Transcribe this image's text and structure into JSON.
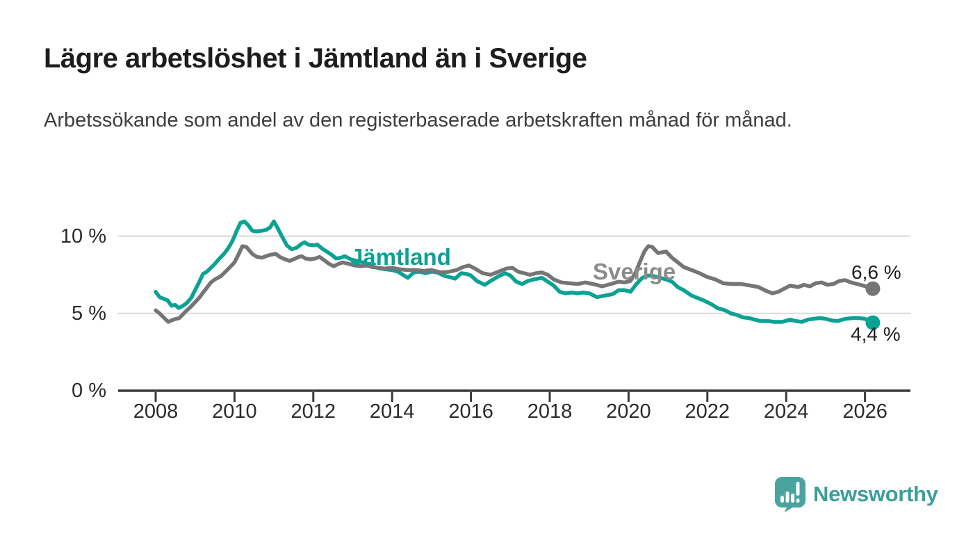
{
  "header": {
    "title": "Lägre arbetslöshet i Jämtland än i Sverige",
    "subtitle": "Arbetssökande som andel av den registerbaserade arbetskraften månad för månad."
  },
  "footer": {
    "brand": "Newsworthy"
  },
  "colors": {
    "jamtland_line": "#0ba294",
    "sverige_line": "#757575",
    "sverige_label": "#8b8b8b",
    "axis": "#3a3a3a",
    "gridline": "#d9d9d9",
    "text_dark": "#1e1e1e",
    "brand_teal": "#4ba3a0"
  },
  "chart_data": {
    "type": "line",
    "title": "Lägre arbetslöshet i Jämtland än i Sverige",
    "subtitle": "Arbetssökande som andel av den registerbaserade arbetskraften månad för månad.",
    "unit": "%",
    "grid": "horizontal-only",
    "legend_position": "inline-labels",
    "x_axis": {
      "min": 2007.85,
      "max": 2027.1,
      "ticks": [
        2008,
        2010,
        2012,
        2014,
        2016,
        2018,
        2020,
        2022,
        2024,
        2026
      ]
    },
    "y_axis": {
      "min": 0,
      "max": 12,
      "ticks": [
        {
          "label": "0 %",
          "value": 0
        },
        {
          "label": "5 %",
          "value": 5
        },
        {
          "label": "10 %",
          "value": 10
        }
      ]
    },
    "series": [
      {
        "name": "Jämtland",
        "color": "#0ba294",
        "end_label": "4,4 %",
        "end_value": 4.4,
        "points": [
          [
            2008.0,
            6.4
          ],
          [
            2008.1,
            6.05
          ],
          [
            2008.2,
            5.95
          ],
          [
            2008.3,
            5.85
          ],
          [
            2008.4,
            5.5
          ],
          [
            2008.5,
            5.55
          ],
          [
            2008.58,
            5.35
          ],
          [
            2008.7,
            5.5
          ],
          [
            2008.8,
            5.7
          ],
          [
            2008.9,
            6.0
          ],
          [
            2009.0,
            6.5
          ],
          [
            2009.1,
            7.0
          ],
          [
            2009.2,
            7.55
          ],
          [
            2009.3,
            7.7
          ],
          [
            2009.4,
            7.95
          ],
          [
            2009.5,
            8.2
          ],
          [
            2009.6,
            8.5
          ],
          [
            2009.75,
            8.9
          ],
          [
            2009.85,
            9.25
          ],
          [
            2009.95,
            9.7
          ],
          [
            2010.05,
            10.3
          ],
          [
            2010.15,
            10.85
          ],
          [
            2010.25,
            10.95
          ],
          [
            2010.35,
            10.7
          ],
          [
            2010.45,
            10.35
          ],
          [
            2010.55,
            10.3
          ],
          [
            2010.7,
            10.35
          ],
          [
            2010.8,
            10.4
          ],
          [
            2010.9,
            10.55
          ],
          [
            2011.0,
            10.95
          ],
          [
            2011.1,
            10.5
          ],
          [
            2011.2,
            10.0
          ],
          [
            2011.33,
            9.4
          ],
          [
            2011.45,
            9.15
          ],
          [
            2011.58,
            9.25
          ],
          [
            2011.7,
            9.5
          ],
          [
            2011.78,
            9.6
          ],
          [
            2011.87,
            9.45
          ],
          [
            2012.0,
            9.4
          ],
          [
            2012.1,
            9.45
          ],
          [
            2012.22,
            9.2
          ],
          [
            2012.34,
            9.0
          ],
          [
            2012.46,
            8.8
          ],
          [
            2012.58,
            8.55
          ],
          [
            2012.7,
            8.6
          ],
          [
            2012.8,
            8.7
          ],
          [
            2012.95,
            8.5
          ],
          [
            2013.1,
            8.4
          ],
          [
            2013.25,
            8.3
          ],
          [
            2013.4,
            8.2
          ],
          [
            2013.55,
            8.0
          ],
          [
            2013.7,
            7.9
          ],
          [
            2013.85,
            7.85
          ],
          [
            2014.0,
            7.8
          ],
          [
            2014.15,
            7.7
          ],
          [
            2014.3,
            7.45
          ],
          [
            2014.4,
            7.3
          ],
          [
            2014.55,
            7.65
          ],
          [
            2014.7,
            7.7
          ],
          [
            2014.85,
            7.6
          ],
          [
            2015.0,
            7.7
          ],
          [
            2015.15,
            7.65
          ],
          [
            2015.3,
            7.45
          ],
          [
            2015.45,
            7.35
          ],
          [
            2015.6,
            7.25
          ],
          [
            2015.75,
            7.6
          ],
          [
            2015.9,
            7.55
          ],
          [
            2016.0,
            7.45
          ],
          [
            2016.15,
            7.1
          ],
          [
            2016.35,
            6.85
          ],
          [
            2016.5,
            7.1
          ],
          [
            2016.7,
            7.4
          ],
          [
            2016.87,
            7.6
          ],
          [
            2017.0,
            7.45
          ],
          [
            2017.15,
            7.05
          ],
          [
            2017.3,
            6.9
          ],
          [
            2017.45,
            7.1
          ],
          [
            2017.6,
            7.2
          ],
          [
            2017.8,
            7.3
          ],
          [
            2017.95,
            7.05
          ],
          [
            2018.1,
            6.8
          ],
          [
            2018.25,
            6.4
          ],
          [
            2018.4,
            6.3
          ],
          [
            2018.55,
            6.35
          ],
          [
            2018.7,
            6.3
          ],
          [
            2018.85,
            6.35
          ],
          [
            2019.0,
            6.3
          ],
          [
            2019.2,
            6.05
          ],
          [
            2019.4,
            6.15
          ],
          [
            2019.6,
            6.25
          ],
          [
            2019.75,
            6.5
          ],
          [
            2019.9,
            6.5
          ],
          [
            2020.05,
            6.4
          ],
          [
            2020.2,
            6.9
          ],
          [
            2020.35,
            7.3
          ],
          [
            2020.5,
            7.45
          ],
          [
            2020.65,
            7.4
          ],
          [
            2020.8,
            7.3
          ],
          [
            2020.95,
            7.2
          ],
          [
            2021.1,
            7.05
          ],
          [
            2021.25,
            6.7
          ],
          [
            2021.4,
            6.5
          ],
          [
            2021.6,
            6.15
          ],
          [
            2021.75,
            6.0
          ],
          [
            2021.9,
            5.85
          ],
          [
            2022.1,
            5.6
          ],
          [
            2022.25,
            5.35
          ],
          [
            2022.45,
            5.2
          ],
          [
            2022.6,
            5.0
          ],
          [
            2022.75,
            4.9
          ],
          [
            2022.9,
            4.75
          ],
          [
            2023.05,
            4.7
          ],
          [
            2023.2,
            4.6
          ],
          [
            2023.35,
            4.5
          ],
          [
            2023.55,
            4.5
          ],
          [
            2023.7,
            4.45
          ],
          [
            2023.9,
            4.45
          ],
          [
            2024.1,
            4.6
          ],
          [
            2024.25,
            4.5
          ],
          [
            2024.4,
            4.45
          ],
          [
            2024.55,
            4.6
          ],
          [
            2024.7,
            4.65
          ],
          [
            2024.85,
            4.7
          ],
          [
            2025.0,
            4.65
          ],
          [
            2025.15,
            4.55
          ],
          [
            2025.3,
            4.5
          ],
          [
            2025.5,
            4.65
          ],
          [
            2025.7,
            4.7
          ],
          [
            2025.85,
            4.7
          ],
          [
            2026.0,
            4.65
          ],
          [
            2026.1,
            4.5
          ],
          [
            2026.2,
            4.4
          ]
        ]
      },
      {
        "name": "Sverige",
        "color": "#757575",
        "end_label": "6,6 %",
        "end_value": 6.6,
        "points": [
          [
            2008.0,
            5.2
          ],
          [
            2008.1,
            5.0
          ],
          [
            2008.2,
            4.75
          ],
          [
            2008.32,
            4.45
          ],
          [
            2008.45,
            4.6
          ],
          [
            2008.6,
            4.7
          ],
          [
            2008.75,
            5.1
          ],
          [
            2008.9,
            5.45
          ],
          [
            2009.1,
            6.0
          ],
          [
            2009.28,
            6.6
          ],
          [
            2009.4,
            7.0
          ],
          [
            2009.5,
            7.2
          ],
          [
            2009.65,
            7.4
          ],
          [
            2009.75,
            7.65
          ],
          [
            2009.87,
            7.95
          ],
          [
            2010.0,
            8.3
          ],
          [
            2010.1,
            8.8
          ],
          [
            2010.2,
            9.35
          ],
          [
            2010.3,
            9.3
          ],
          [
            2010.45,
            8.85
          ],
          [
            2010.57,
            8.65
          ],
          [
            2010.7,
            8.6
          ],
          [
            2010.8,
            8.7
          ],
          [
            2010.93,
            8.8
          ],
          [
            2011.05,
            8.85
          ],
          [
            2011.15,
            8.65
          ],
          [
            2011.28,
            8.5
          ],
          [
            2011.4,
            8.4
          ],
          [
            2011.5,
            8.5
          ],
          [
            2011.63,
            8.65
          ],
          [
            2011.7,
            8.7
          ],
          [
            2011.8,
            8.55
          ],
          [
            2011.93,
            8.5
          ],
          [
            2012.05,
            8.55
          ],
          [
            2012.16,
            8.65
          ],
          [
            2012.3,
            8.4
          ],
          [
            2012.4,
            8.2
          ],
          [
            2012.52,
            8.05
          ],
          [
            2012.64,
            8.2
          ],
          [
            2012.75,
            8.3
          ],
          [
            2012.9,
            8.2
          ],
          [
            2013.05,
            8.1
          ],
          [
            2013.2,
            8.05
          ],
          [
            2013.35,
            8.1
          ],
          [
            2013.5,
            8.0
          ],
          [
            2013.65,
            7.95
          ],
          [
            2013.8,
            7.9
          ],
          [
            2014.0,
            7.95
          ],
          [
            2014.2,
            7.85
          ],
          [
            2014.4,
            7.8
          ],
          [
            2014.6,
            7.8
          ],
          [
            2014.8,
            7.75
          ],
          [
            2015.0,
            7.8
          ],
          [
            2015.25,
            7.65
          ],
          [
            2015.45,
            7.7
          ],
          [
            2015.63,
            7.8
          ],
          [
            2015.8,
            8.0
          ],
          [
            2015.95,
            8.1
          ],
          [
            2016.1,
            7.9
          ],
          [
            2016.3,
            7.6
          ],
          [
            2016.5,
            7.5
          ],
          [
            2016.7,
            7.7
          ],
          [
            2016.9,
            7.9
          ],
          [
            2017.05,
            7.95
          ],
          [
            2017.2,
            7.7
          ],
          [
            2017.35,
            7.6
          ],
          [
            2017.5,
            7.5
          ],
          [
            2017.65,
            7.6
          ],
          [
            2017.8,
            7.65
          ],
          [
            2017.95,
            7.5
          ],
          [
            2018.1,
            7.2
          ],
          [
            2018.3,
            7.0
          ],
          [
            2018.5,
            6.95
          ],
          [
            2018.7,
            6.9
          ],
          [
            2018.9,
            7.0
          ],
          [
            2019.1,
            6.9
          ],
          [
            2019.33,
            6.75
          ],
          [
            2019.55,
            6.9
          ],
          [
            2019.75,
            7.05
          ],
          [
            2019.9,
            7.0
          ],
          [
            2020.05,
            7.1
          ],
          [
            2020.17,
            7.6
          ],
          [
            2020.3,
            8.4
          ],
          [
            2020.4,
            9.0
          ],
          [
            2020.5,
            9.35
          ],
          [
            2020.6,
            9.3
          ],
          [
            2020.75,
            8.9
          ],
          [
            2020.85,
            8.95
          ],
          [
            2020.95,
            9.0
          ],
          [
            2021.1,
            8.6
          ],
          [
            2021.25,
            8.3
          ],
          [
            2021.4,
            8.0
          ],
          [
            2021.5,
            7.9
          ],
          [
            2021.65,
            7.75
          ],
          [
            2021.8,
            7.6
          ],
          [
            2022.0,
            7.35
          ],
          [
            2022.2,
            7.2
          ],
          [
            2022.4,
            6.95
          ],
          [
            2022.6,
            6.9
          ],
          [
            2022.85,
            6.9
          ],
          [
            2023.1,
            6.8
          ],
          [
            2023.3,
            6.7
          ],
          [
            2023.5,
            6.45
          ],
          [
            2023.65,
            6.3
          ],
          [
            2023.8,
            6.4
          ],
          [
            2023.95,
            6.6
          ],
          [
            2024.1,
            6.8
          ],
          [
            2024.3,
            6.7
          ],
          [
            2024.45,
            6.85
          ],
          [
            2024.6,
            6.75
          ],
          [
            2024.75,
            6.95
          ],
          [
            2024.9,
            7.0
          ],
          [
            2025.05,
            6.85
          ],
          [
            2025.2,
            6.9
          ],
          [
            2025.35,
            7.1
          ],
          [
            2025.5,
            7.15
          ],
          [
            2025.65,
            7.0
          ],
          [
            2025.8,
            6.9
          ],
          [
            2025.95,
            6.8
          ],
          [
            2026.1,
            6.7
          ],
          [
            2026.2,
            6.6
          ]
        ]
      }
    ]
  }
}
